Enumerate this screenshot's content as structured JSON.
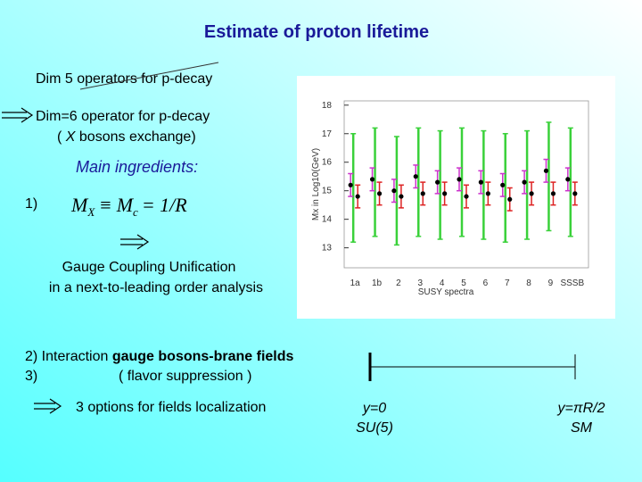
{
  "title": "Estimate of proton lifetime",
  "dim5": "Dim 5 operators for p-decay",
  "dim6": "Dim=6  operator for p-decay",
  "dim6_note": [
    "( ",
    "X",
    " bosons exchange)"
  ],
  "ingredients": "Main ingredients:",
  "item1": "1)",
  "formula": {
    "lhs": "M",
    "lhs_sub": "X",
    "rel": "≡",
    "mid": "M",
    "mid_sub": "c",
    "rhs": "= 1/R"
  },
  "unification": [
    "Gauge Coupling Unification",
    "in a next-to-leading order analysis"
  ],
  "item2": [
    "2)  Interaction ",
    "gauge bosons-brane fields"
  ],
  "item3": [
    "3)",
    "( flavor suppression )"
  ],
  "options": "3 options for fields localization",
  "left_end": [
    "y=0",
    "SU(5)"
  ],
  "right_end": [
    "y=πR/2",
    "SM"
  ],
  "chart_data": {
    "type": "errorbar",
    "ylabel": "Mx in Log10(GeV)",
    "xlabel": "SUSY spectra",
    "categories": [
      "1a",
      "1b",
      "2",
      "3",
      "4",
      "5",
      "6",
      "7",
      "8",
      "9",
      "SSSB"
    ],
    "ylim": [
      12.3,
      18.15
    ],
    "yticks": [
      18,
      17,
      16,
      15,
      14,
      13
    ],
    "marker_color": "#000000",
    "series": [
      {
        "color": "#3ad13a",
        "values": [
          15.1,
          15.3,
          15.0,
          15.3,
          15.2,
          15.3,
          15.2,
          15.1,
          15.2,
          15.5,
          15.3
        ],
        "errors": [
          1.9,
          1.9,
          1.9,
          1.9,
          1.9,
          1.9,
          1.9,
          1.9,
          1.9,
          1.9,
          1.9
        ]
      },
      {
        "color": "#cc33cc",
        "values": [
          15.2,
          15.4,
          15.0,
          15.5,
          15.3,
          15.4,
          15.3,
          15.2,
          15.3,
          15.7,
          15.4
        ],
        "errors": [
          0.4,
          0.4,
          0.4,
          0.4,
          0.4,
          0.4,
          0.4,
          0.4,
          0.4,
          0.4,
          0.4
        ]
      },
      {
        "color": "#dd2222",
        "values": [
          14.8,
          14.9,
          14.8,
          14.9,
          14.9,
          14.8,
          14.9,
          14.7,
          14.9,
          14.9,
          14.9
        ],
        "errors": [
          0.4,
          0.4,
          0.4,
          0.4,
          0.4,
          0.4,
          0.4,
          0.4,
          0.4,
          0.4,
          0.4
        ]
      }
    ]
  }
}
